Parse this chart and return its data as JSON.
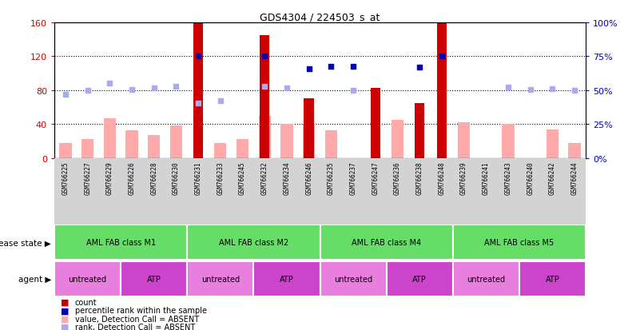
{
  "title": "GDS4304 / 224503_s_at",
  "samples": [
    "GSM766225",
    "GSM766227",
    "GSM766229",
    "GSM766226",
    "GSM766228",
    "GSM766230",
    "GSM766231",
    "GSM766233",
    "GSM766245",
    "GSM766232",
    "GSM766234",
    "GSM766246",
    "GSM766235",
    "GSM766237",
    "GSM766247",
    "GSM766236",
    "GSM766238",
    "GSM766248",
    "GSM766239",
    "GSM766241",
    "GSM766243",
    "GSM766240",
    "GSM766242",
    "GSM766244"
  ],
  "count_values": [
    0,
    0,
    0,
    0,
    0,
    0,
    159,
    0,
    0,
    145,
    0,
    70,
    0,
    0,
    83,
    0,
    65,
    160,
    0,
    0,
    0,
    0,
    0,
    0
  ],
  "value_absent": [
    18,
    22,
    47,
    33,
    27,
    38,
    0,
    18,
    22,
    50,
    40,
    40,
    33,
    0,
    0,
    45,
    0,
    0,
    42,
    0,
    40,
    0,
    34,
    18
  ],
  "rank_absent_left": [
    75,
    80,
    88,
    81,
    83,
    85,
    65,
    68,
    0,
    85,
    83,
    0,
    0,
    80,
    0,
    0,
    0,
    0,
    0,
    0,
    84,
    81,
    82,
    80
  ],
  "percentile_rank_left": [
    0,
    0,
    0,
    0,
    0,
    0,
    120,
    0,
    0,
    120,
    0,
    105,
    108,
    108,
    0,
    0,
    107,
    120,
    0,
    0,
    0,
    0,
    0,
    0
  ],
  "disease_groups": [
    {
      "label": "AML FAB class M1",
      "start": 0,
      "end": 6
    },
    {
      "label": "AML FAB class M2",
      "start": 6,
      "end": 12
    },
    {
      "label": "AML FAB class M4",
      "start": 12,
      "end": 18
    },
    {
      "label": "AML FAB class M5",
      "start": 18,
      "end": 24
    }
  ],
  "agent_groups": [
    {
      "label": "untreated",
      "start": 0,
      "end": 3,
      "color": "#e87fde"
    },
    {
      "label": "ATP",
      "start": 3,
      "end": 6,
      "color": "#cc44cc"
    },
    {
      "label": "untreated",
      "start": 6,
      "end": 9,
      "color": "#e87fde"
    },
    {
      "label": "ATP",
      "start": 9,
      "end": 12,
      "color": "#cc44cc"
    },
    {
      "label": "untreated",
      "start": 12,
      "end": 15,
      "color": "#e87fde"
    },
    {
      "label": "ATP",
      "start": 15,
      "end": 18,
      "color": "#cc44cc"
    },
    {
      "label": "untreated",
      "start": 18,
      "end": 21,
      "color": "#e87fde"
    },
    {
      "label": "ATP",
      "start": 21,
      "end": 24,
      "color": "#cc44cc"
    }
  ],
  "ylim_left": [
    0,
    160
  ],
  "ylim_right": [
    0,
    100
  ],
  "yticks_left": [
    0,
    40,
    80,
    120,
    160
  ],
  "yticks_right": [
    0,
    25,
    50,
    75,
    100
  ],
  "count_color": "#cc0000",
  "percentile_color": "#0000bb",
  "value_absent_color": "#ffaaaa",
  "rank_absent_color": "#aaaaee",
  "disease_color": "#66dd66",
  "bar_width": 0.55,
  "count_bar_width": 0.45
}
